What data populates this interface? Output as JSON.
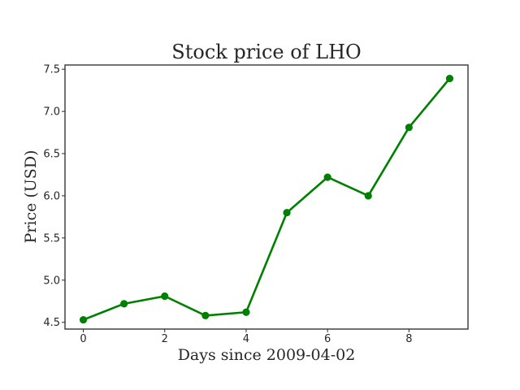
{
  "chart_data": {
    "type": "line",
    "title": "Stock price of LHO",
    "xlabel": "Days since 2009-04-02",
    "ylabel": "Price (USD)",
    "x": [
      0,
      1,
      2,
      3,
      4,
      5,
      6,
      7,
      8,
      9
    ],
    "series": [
      {
        "values": [
          4.53,
          4.72,
          4.81,
          4.58,
          4.62,
          5.8,
          6.22,
          6.0,
          6.81,
          7.39
        ],
        "color": "#008000"
      }
    ],
    "xlim": [
      -0.45,
      9.45
    ],
    "ylim": [
      4.42,
      7.55
    ],
    "xticks": [
      0,
      2,
      4,
      6,
      8
    ],
    "xtick_labels": [
      "0",
      "2",
      "4",
      "6",
      "8"
    ],
    "yticks": [
      4.5,
      5.0,
      5.5,
      6.0,
      6.5,
      7.0,
      7.5
    ],
    "ytick_labels": [
      "4.5",
      "5.0",
      "5.5",
      "6.0",
      "6.5",
      "7.0",
      "7.5"
    ],
    "grid": false,
    "markers": true
  }
}
